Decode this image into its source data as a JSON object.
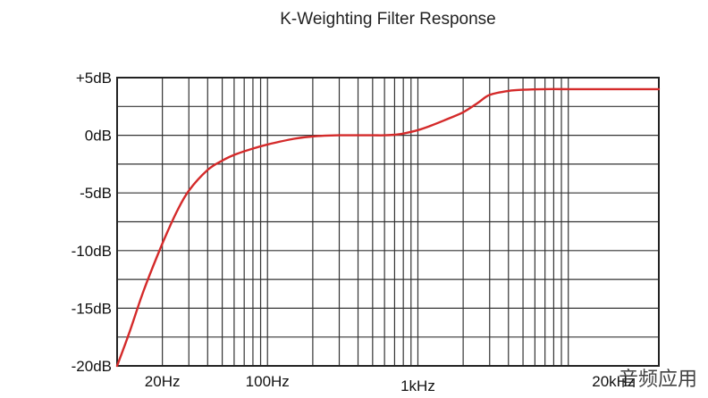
{
  "chart_data": {
    "type": "line",
    "title": "K-Weighting Filter Response",
    "xlabel": "",
    "ylabel": "",
    "x_scale": "log",
    "xlim": [
      10,
      40000
    ],
    "ylim": [
      -20,
      5
    ],
    "grid": true,
    "y_ticks": [
      {
        "value": 5,
        "label": "+5dB"
      },
      {
        "value": 0,
        "label": "0dB"
      },
      {
        "value": -5,
        "label": "-5dB"
      },
      {
        "value": -10,
        "label": "-10dB"
      },
      {
        "value": -15,
        "label": "-15dB"
      },
      {
        "value": -20,
        "label": "-20dB"
      }
    ],
    "y_gridlines": [
      5,
      2.5,
      0,
      -2.5,
      -5,
      -7.5,
      -10,
      -12.5,
      -15,
      -17.5,
      -20
    ],
    "x_ticks": [
      {
        "value": 20,
        "label": "20Hz"
      },
      {
        "value": 100,
        "label": "100Hz"
      },
      {
        "value": 1000,
        "label": "1kHz"
      },
      {
        "value": 20000,
        "label": "20kHz"
      }
    ],
    "x_gridlines": [
      20,
      30,
      40,
      50,
      60,
      70,
      80,
      90,
      100,
      200,
      300,
      400,
      500,
      600,
      700,
      800,
      900,
      1000,
      2000,
      3000,
      4000,
      5000,
      6000,
      7000,
      8000,
      9000,
      10000
    ],
    "series": [
      {
        "color": "#d42a2a",
        "x": [
          10,
          12,
          15,
          20,
          25,
          30,
          40,
          50,
          60,
          80,
          100,
          150,
          200,
          300,
          400,
          500,
          600,
          700,
          800,
          1000,
          1200,
          1500,
          2000,
          2500,
          3000,
          4000,
          5000,
          7000,
          10000,
          15000,
          20000,
          40000
        ],
        "y": [
          -20,
          -17.2,
          -13.5,
          -9.4,
          -6.6,
          -4.8,
          -3.0,
          -2.2,
          -1.7,
          -1.15,
          -0.8,
          -0.3,
          -0.1,
          0,
          0,
          0,
          0,
          0.05,
          0.15,
          0.45,
          0.8,
          1.3,
          2.0,
          2.8,
          3.5,
          3.85,
          3.95,
          4.0,
          4.0,
          4.0,
          4.0,
          4.0
        ]
      }
    ]
  },
  "watermark": "音频应用"
}
